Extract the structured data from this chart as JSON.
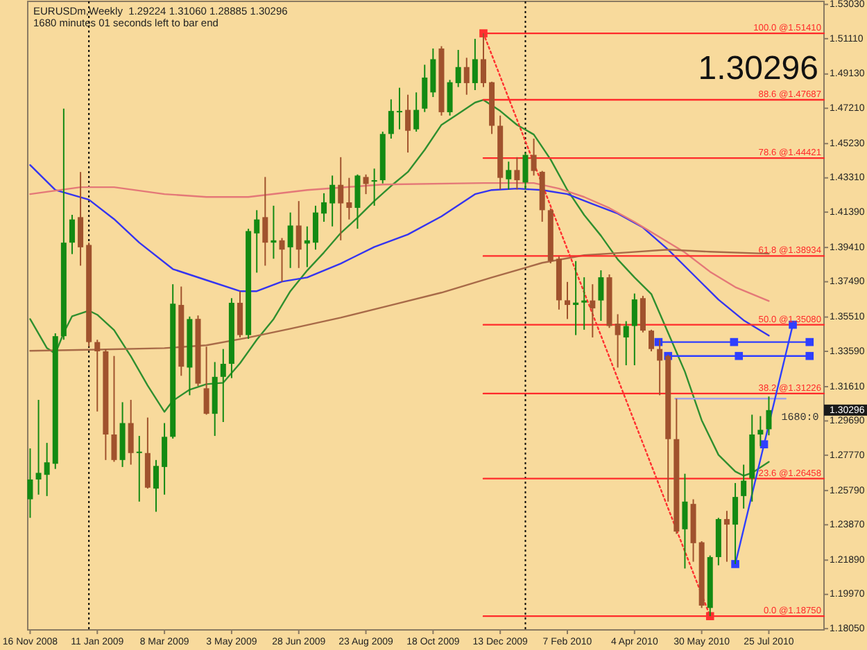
{
  "chart_data": {
    "type": "candlestick",
    "title": "EURUSDm,Weekly  1.29224 1.31060 1.28885 1.30296",
    "subtitle": "1680 minutes 01 seconds left to bar end",
    "x": [
      "2008-11-16",
      "2008-11-23",
      "2008-11-30",
      "2008-12-07",
      "2008-12-14",
      "2008-12-21",
      "2008-12-28",
      "2009-01-04",
      "2009-01-11",
      "2009-01-18",
      "2009-01-25",
      "2009-02-01",
      "2009-02-08",
      "2009-02-15",
      "2009-02-22",
      "2009-03-01",
      "2009-03-08",
      "2009-03-15",
      "2009-03-22",
      "2009-03-29",
      "2009-04-05",
      "2009-04-12",
      "2009-04-19",
      "2009-04-26",
      "2009-05-03",
      "2009-05-10",
      "2009-05-17",
      "2009-05-24",
      "2009-05-31",
      "2009-06-07",
      "2009-06-14",
      "2009-06-21",
      "2009-06-28",
      "2009-07-05",
      "2009-07-12",
      "2009-07-19",
      "2009-07-26",
      "2009-08-02",
      "2009-08-09",
      "2009-08-16",
      "2009-08-23",
      "2009-08-30",
      "2009-09-06",
      "2009-09-13",
      "2009-09-20",
      "2009-09-27",
      "2009-10-04",
      "2009-10-11",
      "2009-10-18",
      "2009-10-25",
      "2009-11-01",
      "2009-11-08",
      "2009-11-15",
      "2009-11-22",
      "2009-11-29",
      "2009-12-06",
      "2009-12-13",
      "2009-12-20",
      "2009-12-27",
      "2010-01-03",
      "2010-01-10",
      "2010-01-17",
      "2010-01-24",
      "2010-01-31",
      "2010-02-07",
      "2010-02-14",
      "2010-02-21",
      "2010-02-28",
      "2010-03-07",
      "2010-03-14",
      "2010-03-21",
      "2010-03-28",
      "2010-04-04",
      "2010-04-11",
      "2010-04-18",
      "2010-04-25",
      "2010-05-02",
      "2010-05-09",
      "2010-05-16",
      "2010-05-23",
      "2010-05-30",
      "2010-06-06",
      "2010-06-13",
      "2010-06-20",
      "2010-06-27",
      "2010-07-04",
      "2010-07-11",
      "2010-07-18",
      "2010-07-25"
    ],
    "ohlc": [
      [
        1.253,
        1.2815,
        1.2426,
        1.2641
      ],
      [
        1.2641,
        1.3087,
        1.2556,
        1.2678
      ],
      [
        1.2667,
        1.2846,
        1.2548,
        1.2737
      ],
      [
        1.2729,
        1.346,
        1.27,
        1.3444
      ],
      [
        1.3444,
        1.4719,
        1.3424,
        1.3968
      ],
      [
        1.3968,
        1.4124,
        1.3904,
        1.4098
      ],
      [
        1.4111,
        1.4364,
        1.3839,
        1.3942
      ],
      [
        1.3955,
        1.3968,
        1.3385,
        1.3411
      ],
      [
        1.3411,
        1.3424,
        1.3022,
        1.3359
      ],
      [
        1.3359,
        1.337,
        1.275,
        1.2893
      ],
      [
        1.2893,
        1.3333,
        1.274,
        1.275
      ],
      [
        1.275,
        1.3074,
        1.2711,
        1.2957
      ],
      [
        1.2957,
        1.3087,
        1.2724,
        1.2789
      ],
      [
        1.2789,
        1.2885,
        1.2517,
        1.2797
      ],
      [
        1.2789,
        1.2988,
        1.259,
        1.2595
      ],
      [
        1.259,
        1.275,
        1.246,
        1.2717
      ],
      [
        1.2711,
        1.2957,
        1.2556,
        1.288
      ],
      [
        1.288,
        1.3735,
        1.287,
        1.3626
      ],
      [
        1.3619,
        1.3722,
        1.3222,
        1.3273
      ],
      [
        1.3268,
        1.3554,
        1.3113,
        1.354
      ],
      [
        1.3541,
        1.356,
        1.3165,
        1.3178
      ],
      [
        1.3152,
        1.3385,
        1.3004,
        1.3009
      ],
      [
        1.3009,
        1.3299,
        1.2885,
        1.3216
      ],
      [
        1.3216,
        1.3372,
        1.2963,
        1.3289
      ],
      [
        1.3289,
        1.3657,
        1.3209,
        1.3631
      ],
      [
        1.3631,
        1.3696,
        1.3437,
        1.345
      ],
      [
        1.345,
        1.4046,
        1.3429,
        1.4033
      ],
      [
        1.402,
        1.415,
        1.38,
        1.4098
      ],
      [
        1.4111,
        1.4336,
        1.3839,
        1.3968
      ],
      [
        1.3968,
        1.4175,
        1.3878,
        1.3981
      ],
      [
        1.3981,
        1.3994,
        1.3748,
        1.3929
      ],
      [
        1.3942,
        1.4137,
        1.3826,
        1.4064
      ],
      [
        1.4064,
        1.4201,
        1.3826,
        1.3929
      ],
      [
        1.3963,
        1.4059,
        1.3831,
        1.3981
      ],
      [
        1.3968,
        1.4175,
        1.3929,
        1.4137
      ],
      [
        1.4131,
        1.4245,
        1.4085,
        1.4194
      ],
      [
        1.4188,
        1.4344,
        1.4059,
        1.4292
      ],
      [
        1.4292,
        1.4447,
        1.3981,
        1.4188
      ],
      [
        1.4194,
        1.4331,
        1.4098,
        1.4163
      ],
      [
        1.4163,
        1.435,
        1.4046,
        1.4344
      ],
      [
        1.4336,
        1.435,
        1.424,
        1.4297
      ],
      [
        1.4313,
        1.4383,
        1.4175,
        1.4318
      ],
      [
        1.4318,
        1.459,
        1.43,
        1.4577
      ],
      [
        1.4577,
        1.4771,
        1.4551,
        1.4706
      ],
      [
        1.4699,
        1.4836,
        1.4603,
        1.4706
      ],
      [
        1.4712,
        1.4797,
        1.4473,
        1.4595
      ],
      [
        1.4603,
        1.481,
        1.459,
        1.4712
      ],
      [
        1.4719,
        1.4965,
        1.47,
        1.4893
      ],
      [
        1.481,
        1.5056,
        1.4784,
        1.4996
      ],
      [
        1.5056,
        1.5069,
        1.468,
        1.4699
      ],
      [
        1.4699,
        1.488,
        1.468,
        1.4867
      ],
      [
        1.4862,
        1.5048,
        1.484,
        1.4952
      ],
      [
        1.4952,
        1.5004,
        1.4797,
        1.4862
      ],
      [
        1.4862,
        1.511,
        1.4823,
        1.4996
      ],
      [
        1.4996,
        1.5141,
        1.484,
        1.4862
      ],
      [
        1.4867,
        1.487,
        1.4577,
        1.4623
      ],
      [
        1.4623,
        1.468,
        1.4266,
        1.4331
      ],
      [
        1.4323,
        1.4422,
        1.4266,
        1.4375
      ],
      [
        1.4375,
        1.4447,
        1.4266,
        1.4318
      ],
      [
        1.4305,
        1.4473,
        1.4266,
        1.446
      ],
      [
        1.446,
        1.4551,
        1.4344,
        1.437
      ],
      [
        1.4365,
        1.437,
        1.4085,
        1.415
      ],
      [
        1.415,
        1.416,
        1.3852,
        1.3865
      ],
      [
        1.3878,
        1.389,
        1.3593,
        1.3645
      ],
      [
        1.3645,
        1.3748,
        1.354,
        1.3619
      ],
      [
        1.3619,
        1.3865,
        1.345,
        1.3632
      ],
      [
        1.3632,
        1.3774,
        1.348,
        1.3644
      ],
      [
        1.3644,
        1.3735,
        1.3437,
        1.36
      ],
      [
        1.3644,
        1.3813,
        1.353,
        1.3774
      ],
      [
        1.3774,
        1.379,
        1.349,
        1.3501
      ],
      [
        1.3514,
        1.3567,
        1.3268,
        1.345
      ],
      [
        1.3437,
        1.3528,
        1.3281,
        1.3501
      ],
      [
        1.3501,
        1.3683,
        1.3281,
        1.365
      ],
      [
        1.3657,
        1.367,
        1.3465,
        1.3475
      ],
      [
        1.3475,
        1.348,
        1.3359,
        1.3372
      ],
      [
        1.3372,
        1.3424,
        1.3113,
        1.3307
      ],
      [
        1.3333,
        1.334,
        1.2517,
        1.2867
      ],
      [
        1.2867,
        1.3094,
        1.2336,
        1.2349
      ],
      [
        1.2362,
        1.2673,
        1.2142,
        1.2517
      ],
      [
        1.2504,
        1.253,
        1.218,
        1.2284
      ],
      [
        1.2289,
        1.2295,
        1.1921,
        1.1934
      ],
      [
        1.1921,
        1.2215,
        1.1875,
        1.2206
      ],
      [
        1.2206,
        1.2426,
        1.216,
        1.2419
      ],
      [
        1.2419,
        1.2465,
        1.218,
        1.2388
      ],
      [
        1.2388,
        1.2621,
        1.2167,
        1.2543
      ],
      [
        1.2548,
        1.2724,
        1.2478,
        1.2634
      ],
      [
        1.2647,
        1.3004,
        1.2517,
        1.2893
      ],
      [
        1.2893,
        1.2996,
        1.2828,
        1.2919
      ],
      [
        1.29224,
        1.3106,
        1.28885,
        1.30296
      ]
    ],
    "colors": [
      "#138a13",
      "#138a13",
      "#138a13",
      "#138a13",
      "#138a13",
      "#138a13",
      "#a0522d",
      "#a0522d",
      "#a0522d",
      "#a0522d",
      "#a0522d",
      "#138a13",
      "#a0522d",
      "#138a13",
      "#a0522d",
      "#138a13",
      "#138a13",
      "#138a13",
      "#a0522d",
      "#138a13",
      "#a0522d",
      "#a0522d",
      "#138a13",
      "#138a13",
      "#138a13",
      "#a0522d",
      "#138a13",
      "#138a13",
      "#a0522d",
      "#138a13",
      "#a0522d",
      "#138a13",
      "#a0522d",
      "#138a13",
      "#138a13",
      "#138a13",
      "#138a13",
      "#a0522d",
      "#a0522d",
      "#138a13",
      "#a0522d",
      "#138a13",
      "#138a13",
      "#138a13",
      "#138a13",
      "#a0522d",
      "#138a13",
      "#138a13",
      "#138a13",
      "#a0522d",
      "#138a13",
      "#138a13",
      "#a0522d",
      "#138a13",
      "#a0522d",
      "#a0522d",
      "#a0522d",
      "#138a13",
      "#a0522d",
      "#138a13",
      "#a0522d",
      "#a0522d",
      "#a0522d",
      "#a0522d",
      "#a0522d",
      "#138a13",
      "#138a13",
      "#a0522d",
      "#138a13",
      "#a0522d",
      "#a0522d",
      "#138a13",
      "#138a13",
      "#a0522d",
      "#a0522d",
      "#a0522d",
      "#a0522d",
      "#a0522d",
      "#138a13",
      "#a0522d",
      "#a0522d",
      "#138a13",
      "#138a13",
      "#a0522d",
      "#138a13",
      "#138a13",
      "#138a13",
      "#138a13",
      "#138a13"
    ],
    "series": [
      {
        "type": "line",
        "color": "#2f8f2f",
        "x": [
          "2008-11-16",
          "2008-11-30",
          "2008-12-07",
          "2008-12-14",
          "2008-12-21",
          "2009-01-04",
          "2009-01-11",
          "2009-01-25",
          "2009-02-08",
          "2009-02-22",
          "2009-03-08",
          "2009-03-15",
          "2009-03-29",
          "2009-04-12",
          "2009-04-26",
          "2009-05-10",
          "2009-05-24",
          "2009-06-07",
          "2009-06-21",
          "2009-07-05",
          "2009-07-19",
          "2009-08-02",
          "2009-08-16",
          "2009-08-30",
          "2009-09-13",
          "2009-09-27",
          "2009-10-11",
          "2009-10-25",
          "2009-11-08",
          "2009-11-22",
          "2009-11-29",
          "2009-12-13",
          "2009-12-27",
          "2010-01-10",
          "2010-01-24",
          "2010-02-07",
          "2010-02-21",
          "2010-03-07",
          "2010-03-21",
          "2010-04-04",
          "2010-04-18",
          "2010-05-02",
          "2010-05-16",
          "2010-05-30",
          "2010-06-13",
          "2010-06-27",
          "2010-07-04",
          "2010-07-11",
          "2010-07-25"
        ],
        "values": [
          1.354,
          1.3377,
          1.3346,
          1.3463,
          1.3556,
          1.3587,
          1.3564,
          1.3478,
          1.3331,
          1.3167,
          1.302,
          1.3082,
          1.3144,
          1.3175,
          1.3183,
          1.3292,
          1.3424,
          1.354,
          1.3696,
          1.3812,
          1.3913,
          1.4022,
          1.4108,
          1.4201,
          1.4286,
          1.4364,
          1.4488,
          1.4628,
          1.469,
          1.4753,
          1.4768,
          1.4706,
          1.4628,
          1.4574,
          1.4434,
          1.4263,
          1.4123,
          1.4007,
          1.3874,
          1.3773,
          1.368,
          1.3463,
          1.3245,
          1.2973,
          1.2779,
          1.2686,
          1.2662,
          1.2678,
          1.274
        ]
      },
      {
        "type": "line",
        "color": "#3434f0",
        "x": [
          "2008-11-16",
          "2008-12-07",
          "2009-01-04",
          "2009-01-25",
          "2009-02-15",
          "2009-03-15",
          "2009-04-12",
          "2009-05-10",
          "2009-05-24",
          "2009-06-14",
          "2009-07-05",
          "2009-08-02",
          "2009-08-30",
          "2009-09-27",
          "2009-10-25",
          "2009-11-22",
          "2009-12-06",
          "2009-12-27",
          "2010-01-17",
          "2010-02-07",
          "2010-02-28",
          "2010-03-21",
          "2010-04-11",
          "2010-05-02",
          "2010-05-23",
          "2010-06-13",
          "2010-07-04",
          "2010-07-25"
        ],
        "values": [
          1.4403,
          1.4263,
          1.4209,
          1.41,
          1.3968,
          1.382,
          1.3758,
          1.3696,
          1.3696,
          1.375,
          1.3773,
          1.3851,
          1.3944,
          1.4014,
          1.4115,
          1.424,
          1.4263,
          1.4271,
          1.4263,
          1.424,
          1.4185,
          1.4131,
          1.4053,
          1.3929,
          1.3789,
          1.3649,
          1.3533,
          1.3447
        ]
      },
      {
        "type": "line",
        "color": "#e47878",
        "x": [
          "2008-11-16",
          "2008-12-28",
          "2009-01-25",
          "2009-03-08",
          "2009-04-12",
          "2009-05-17",
          "2009-07-05",
          "2009-09-06",
          "2009-11-29",
          "2010-01-10",
          "2010-01-31",
          "2010-02-21",
          "2010-03-14",
          "2010-04-04",
          "2010-04-25",
          "2010-05-16",
          "2010-06-06",
          "2010-06-27",
          "2010-07-11",
          "2010-07-25"
        ],
        "values": [
          1.424,
          1.4279,
          1.4279,
          1.424,
          1.4224,
          1.4224,
          1.4263,
          1.4294,
          1.4302,
          1.4302,
          1.4271,
          1.4224,
          1.4162,
          1.4084,
          1.3999,
          1.3913,
          1.3805,
          1.3719,
          1.368,
          1.3641
        ]
      },
      {
        "type": "line",
        "color": "#a86a48",
        "x": [
          "2008-11-16",
          "2009-01-11",
          "2009-03-08",
          "2009-04-12",
          "2009-05-17",
          "2009-06-21",
          "2009-08-02",
          "2009-09-13",
          "2009-10-25",
          "2009-12-06",
          "2010-01-17",
          "2010-02-21",
          "2010-03-28",
          "2010-05-02",
          "2010-06-06",
          "2010-07-25"
        ],
        "values": [
          1.3362,
          1.3369,
          1.3377,
          1.3393,
          1.3436,
          1.3486,
          1.3548,
          1.3618,
          1.3688,
          1.3773,
          1.3855,
          1.3898,
          1.3913,
          1.3929,
          1.3917,
          1.3906
        ]
      },
      {
        "type": "line",
        "name": "100.0 @1.51410",
        "color": "#ff2a2a",
        "x": [
          "2009-11-29",
          "2010-09-09"
        ],
        "values": [
          1.5141,
          1.5141
        ]
      },
      {
        "type": "line",
        "name": "88.6 @1.47687",
        "color": "#ff2a2a",
        "x": [
          "2009-11-29",
          "2010-09-09"
        ],
        "values": [
          1.47687,
          1.47687
        ]
      },
      {
        "type": "line",
        "name": "78.6 @1.44421",
        "color": "#ff2a2a",
        "x": [
          "2009-11-29",
          "2010-09-09"
        ],
        "values": [
          1.44421,
          1.44421
        ]
      },
      {
        "type": "line",
        "name": "61.8 @1.38934",
        "color": "#ff2a2a",
        "x": [
          "2009-11-29",
          "2010-09-09"
        ],
        "values": [
          1.38934,
          1.38934
        ]
      },
      {
        "type": "line",
        "name": "50.0 @1.35080",
        "color": "#ff2a2a",
        "x": [
          "2009-11-29",
          "2010-09-09"
        ],
        "values": [
          1.3508,
          1.3508
        ]
      },
      {
        "type": "line",
        "name": "38.2 @1.31226",
        "color": "#ff2a2a",
        "x": [
          "2009-11-29",
          "2010-09-09"
        ],
        "values": [
          1.31226,
          1.31226
        ]
      },
      {
        "type": "line",
        "name": "23.6 @1.26458",
        "color": "#ff2a2a",
        "x": [
          "2009-11-29",
          "2010-09-09"
        ],
        "values": [
          1.26458,
          1.26458
        ]
      },
      {
        "type": "line",
        "name": "0.0 @1.18750",
        "color": "#ff2a2a",
        "x": [
          "2009-11-29",
          "2010-09-09"
        ],
        "values": [
          1.1875,
          1.1875
        ]
      },
      {
        "type": "line",
        "color": "#ff3030",
        "line_style": "dotted",
        "marker": "square",
        "x": [
          "2009-11-29",
          "2010-06-06"
        ],
        "values": [
          1.5141,
          1.1875
        ]
      },
      {
        "type": "line",
        "color": "#a0a0e8",
        "x": [
          "2010-05-08",
          "2010-08-08"
        ],
        "values": [
          1.3094,
          1.3094
        ]
      },
      {
        "type": "line",
        "color": "#2f3fff",
        "marker": "square",
        "x": [
          "2010-04-24",
          "2010-06-26",
          "2010-08-28"
        ],
        "values": [
          1.3411,
          1.3411,
          1.3411
        ]
      },
      {
        "type": "line",
        "color": "#2f3fff",
        "marker": "square",
        "x": [
          "2010-05-02",
          "2010-06-30",
          "2010-08-28"
        ],
        "values": [
          1.3333,
          1.3333,
          1.3333
        ]
      },
      {
        "type": "line",
        "color": "#2f3fff",
        "marker": "square",
        "x": [
          "2010-06-27",
          "2010-07-21",
          "2010-08-14"
        ],
        "values": [
          1.2167,
          1.2838,
          1.3508
        ]
      }
    ],
    "ref_lines": [
      {
        "axis": "x",
        "value": "2009-01-04",
        "color": "#000000",
        "line_style": "dotted"
      },
      {
        "axis": "x",
        "value": "2010-01-03",
        "color": "#000000",
        "line_style": "dotted"
      }
    ],
    "annotations": [
      "1.30296",
      "1680:0",
      "1.30296"
    ],
    "xlim": [
      "2008-11-14",
      "2010-09-09"
    ],
    "xticks": [
      {
        "value": "2008-11-16",
        "label": "16 Nov 2008"
      },
      {
        "value": "2009-01-11",
        "label": "11 Jan 2009"
      },
      {
        "value": "2009-03-08",
        "label": "8 Mar 2009"
      },
      {
        "value": "2009-05-03",
        "label": "3 May 2009"
      },
      {
        "value": "2009-06-28",
        "label": "28 Jun 2009"
      },
      {
        "value": "2009-08-23",
        "label": "23 Aug 2009"
      },
      {
        "value": "2009-10-18",
        "label": "18 Oct 2009"
      },
      {
        "value": "2009-12-13",
        "label": "13 Dec 2009"
      },
      {
        "value": "2010-02-07",
        "label": "7 Feb 2010"
      },
      {
        "value": "2010-04-04",
        "label": "4 Apr 2010"
      },
      {
        "value": "2010-05-30",
        "label": "30 May 2010"
      },
      {
        "value": "2010-07-25",
        "label": "25 Jul 2010"
      }
    ],
    "ylim": [
      1.1798,
      1.532
    ],
    "yticks": [
      {
        "value": 1.5303,
        "label": "1.53030"
      },
      {
        "value": 1.5111,
        "label": "1.51110"
      },
      {
        "value": 1.4913,
        "label": "1.49130"
      },
      {
        "value": 1.4721,
        "label": "1.47210"
      },
      {
        "value": 1.4523,
        "label": "1.45230"
      },
      {
        "value": 1.4331,
        "label": "1.43310"
      },
      {
        "value": 1.4139,
        "label": "1.41390"
      },
      {
        "value": 1.3941,
        "label": "1.39410"
      },
      {
        "value": 1.3749,
        "label": "1.37490"
      },
      {
        "value": 1.3551,
        "label": "1.35510"
      },
      {
        "value": 1.3359,
        "label": "1.33590"
      },
      {
        "value": 1.3161,
        "label": "1.31610"
      },
      {
        "value": 1.2969,
        "label": "1.29690"
      },
      {
        "value": 1.2777,
        "label": "1.27770"
      },
      {
        "value": 1.2579,
        "label": "1.25790"
      },
      {
        "value": 1.2387,
        "label": "1.23870"
      },
      {
        "value": 1.2189,
        "label": "1.21890"
      },
      {
        "value": 1.1997,
        "label": "1.19970"
      },
      {
        "value": 1.1805,
        "label": "1.18050"
      }
    ]
  }
}
